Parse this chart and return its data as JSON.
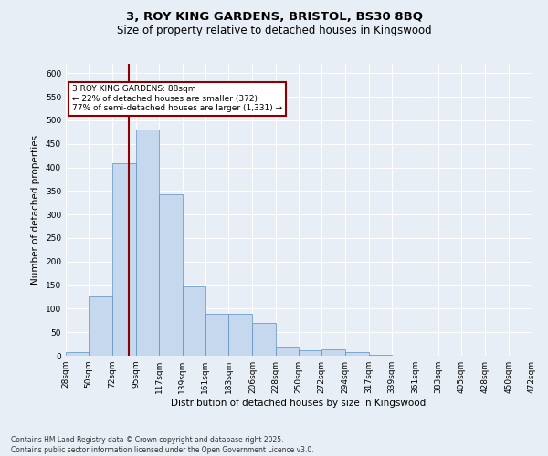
{
  "title_line1": "3, ROY KING GARDENS, BRISTOL, BS30 8BQ",
  "title_line2": "Size of property relative to detached houses in Kingswood",
  "xlabel": "Distribution of detached houses by size in Kingswood",
  "ylabel": "Number of detached properties",
  "bar_values": [
    8,
    125,
    408,
    480,
    342,
    148,
    90,
    90,
    70,
    18,
    12,
    13,
    7,
    1,
    0,
    0,
    0,
    0,
    0,
    0
  ],
  "bin_labels": [
    "28sqm",
    "50sqm",
    "72sqm",
    "95sqm",
    "117sqm",
    "139sqm",
    "161sqm",
    "183sqm",
    "206sqm",
    "228sqm",
    "250sqm",
    "272sqm",
    "294sqm",
    "317sqm",
    "339sqm",
    "361sqm",
    "383sqm",
    "405sqm",
    "428sqm",
    "450sqm",
    "472sqm"
  ],
  "bar_edges": [
    28,
    50,
    72,
    95,
    117,
    139,
    161,
    183,
    206,
    228,
    250,
    272,
    294,
    317,
    339,
    361,
    383,
    405,
    428,
    450,
    472
  ],
  "bar_color": "#c5d8ed",
  "bar_edge_color": "#5a8fc0",
  "vline_x": 88,
  "vline_color": "#8b0000",
  "annotation_text": "3 ROY KING GARDENS: 88sqm\n← 22% of detached houses are smaller (372)\n77% of semi-detached houses are larger (1,331) →",
  "annotation_box_color": "#ffffff",
  "annotation_box_edge": "#8b0000",
  "ylim": [
    0,
    620
  ],
  "yticks": [
    0,
    50,
    100,
    150,
    200,
    250,
    300,
    350,
    400,
    450,
    500,
    550,
    600
  ],
  "bg_color": "#e8eef5",
  "footer_text": "Contains HM Land Registry data © Crown copyright and database right 2025.\nContains public sector information licensed under the Open Government Licence v3.0.",
  "title_fontsize": 9.5,
  "subtitle_fontsize": 8.5,
  "axis_label_fontsize": 7.5,
  "tick_fontsize": 6.5,
  "footer_fontsize": 5.5,
  "annot_fontsize": 6.5
}
